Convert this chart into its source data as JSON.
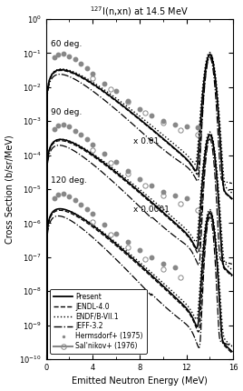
{
  "title": "$^{127}$I(n,xn) at 14.5 MeV",
  "xlabel": "Emitted Neutron Energy (MeV)",
  "ylabel": "Cross Section (b/sr/MeV)",
  "xlim": [
    0,
    16
  ],
  "ylim_log": [
    -10,
    0
  ],
  "angle_labels": [
    "60 deg.",
    "90 deg.",
    "120 deg."
  ],
  "scale_labels": [
    "x 0.01",
    "x 0.0001"
  ],
  "legend_entries": [
    "Present",
    "JENDL-4.0",
    "ENDF/B-VII.1",
    "JEFF-3.2",
    "Hermsdorf+ (1975)",
    "Sal'nikov+ (1976)"
  ],
  "figsize": [
    2.68,
    4.3
  ],
  "dpi": 100
}
